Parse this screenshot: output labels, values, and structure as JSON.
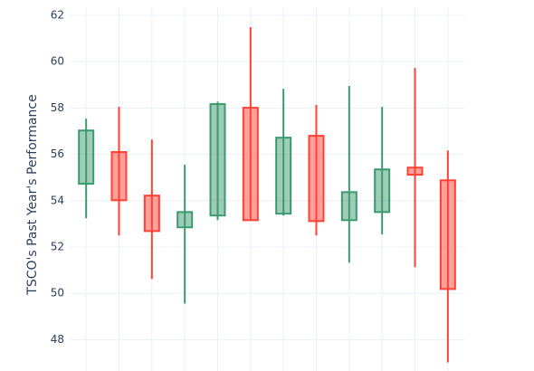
{
  "chart_data": {
    "type": "candlestick",
    "y_label": "TSCO's Past Year's Performance",
    "categories": [
      null,
      null,
      null,
      null,
      null,
      null,
      null,
      null,
      null,
      null,
      null,
      null
    ],
    "open": [
      54.73,
      56.1,
      54.22,
      52.85,
      53.36,
      58.01,
      53.44,
      56.8,
      53.16,
      53.51,
      55.43,
      54.88
    ],
    "high": [
      57.54,
      58.05,
      56.64,
      55.55,
      58.28,
      61.49,
      58.83,
      58.13,
      58.95,
      58.05,
      59.73,
      56.17
    ],
    "low": [
      53.24,
      52.5,
      50.62,
      49.56,
      53.16,
      53.16,
      53.36,
      52.5,
      51.32,
      52.54,
      51.13,
      47.02
    ],
    "close": [
      57.03,
      54.02,
      52.69,
      53.51,
      58.17,
      53.16,
      56.72,
      53.12,
      54.37,
      55.35,
      55.12,
      50.19
    ],
    "increasing_color": "#3d9970",
    "decreasing_color": "#ff4136",
    "ylim": [
      46.65,
      62.35
    ],
    "yticks": [
      48,
      50,
      52,
      54,
      56,
      58,
      60,
      62
    ],
    "grid": true
  }
}
